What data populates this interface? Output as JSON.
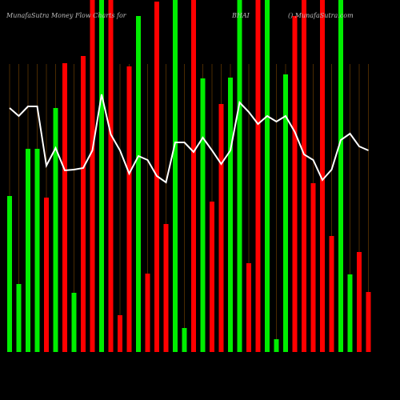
{
  "chart_data": {
    "type": "bar-line",
    "title_left": "MunafaSutra  Money Flow  Charts for",
    "title_mid": "BHAI",
    "title_right": "() MunafaSutra.com",
    "ylim": [
      0,
      440
    ],
    "series": [
      {
        "type": "bar",
        "values": [
          195,
          85,
          254,
          254,
          193,
          305,
          361,
          74,
          370,
          440,
          440,
          440,
          46,
          357,
          420,
          98,
          438,
          160,
          440,
          30,
          440,
          342,
          188,
          310,
          343,
          440,
          111,
          440,
          440,
          16,
          347,
          420,
          440,
          211,
          440,
          145,
          440,
          97,
          125,
          75
        ],
        "colors": [
          "#00ee00",
          "#00ee00",
          "#00ee00",
          "#00ee00",
          "#ff0000",
          "#00ee00",
          "#ff0000",
          "#00ee00",
          "#ff0000",
          "#ff0000",
          "#00ee00",
          "#ff0000",
          "#ff0000",
          "#ff0000",
          "#00ee00",
          "#ff0000",
          "#ff0000",
          "#ff0000",
          "#00ee00",
          "#00ee00",
          "#ff0000",
          "#00ee00",
          "#ff0000",
          "#ff0000",
          "#00ee00",
          "#00ee00",
          "#ff0000",
          "#ff0000",
          "#00ee00",
          "#00ee00",
          "#00ee00",
          "#ff0000",
          "#ff0000",
          "#ff0000",
          "#ff0000",
          "#ff0000",
          "#00ee00",
          "#00ee00",
          "#ff0000",
          "#ff0000"
        ]
      },
      {
        "type": "line",
        "color": "#ffffff",
        "values": [
          305,
          295,
          307,
          307,
          233,
          255,
          227,
          228,
          230,
          252,
          322,
          272,
          252,
          223,
          245,
          240,
          220,
          212,
          262,
          262,
          250,
          268,
          252,
          235,
          252,
          312,
          300,
          285,
          295,
          288,
          295,
          275,
          247,
          240,
          215,
          228,
          265,
          273,
          257,
          252
        ]
      }
    ]
  }
}
